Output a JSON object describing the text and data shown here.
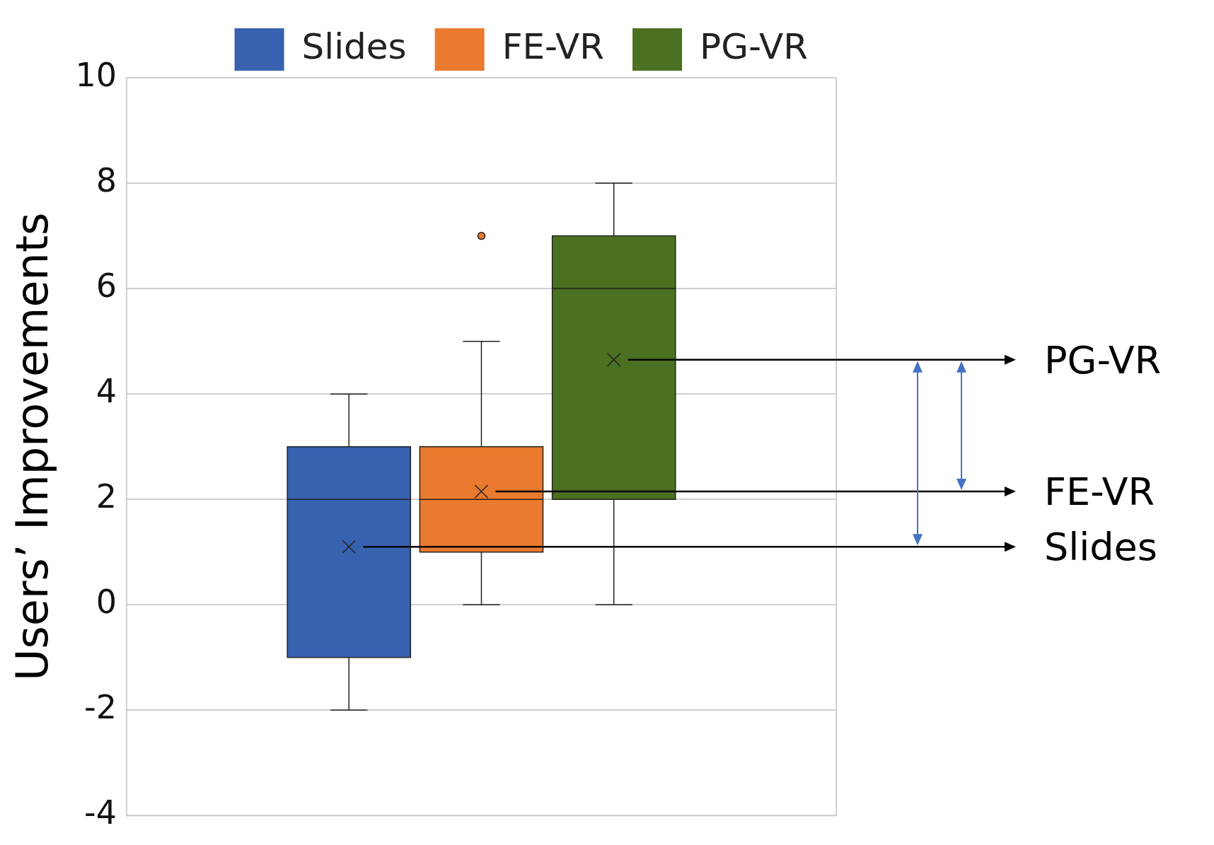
{
  "chart_data": {
    "type": "box",
    "ylabel": "Users’ Improvements",
    "categories": [
      null
    ],
    "series": [
      {
        "name": "Slides",
        "color": "#3762b0",
        "boxes": [
          {
            "low": -2,
            "q1": -1,
            "median": 2,
            "q3": 3,
            "high": 4,
            "mean": 1.1
          }
        ]
      },
      {
        "name": "FE-VR",
        "color": "#ea7a2e",
        "boxes": [
          {
            "low": 0,
            "q1": 1,
            "median": 2,
            "q3": 3,
            "high": 5,
            "mean": 2.15,
            "outliers": [
              7
            ]
          }
        ]
      },
      {
        "name": "PG-VR",
        "color": "#4a7021",
        "boxes": [
          {
            "low": 0,
            "q1": 2,
            "median": 6,
            "q3": 7,
            "high": 8,
            "mean": 4.65
          }
        ]
      }
    ],
    "ylim": [
      -4,
      10
    ],
    "yticks": [
      -4,
      -2,
      0,
      2,
      4,
      6,
      8,
      10
    ],
    "grid": "y",
    "legend": "top",
    "annotations": [
      "PG-VR",
      "FE-VR",
      "Slides"
    ]
  }
}
